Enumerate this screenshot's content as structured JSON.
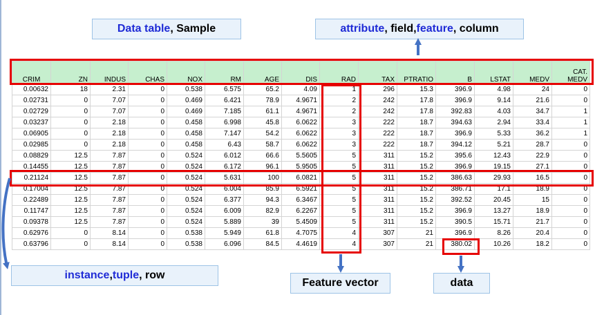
{
  "labels": {
    "sample": [
      "Data table",
      ", Sample"
    ],
    "attribute": [
      "attribute",
      ", field, ",
      "feature",
      ", column"
    ],
    "instance": [
      "instance",
      ", ",
      "tuple",
      ", row"
    ],
    "feature_vector": "Feature vector",
    "data": "data"
  },
  "colors": {
    "highlight_red": "#e60000",
    "header_green": "#c6efce",
    "label_blue_text": "#1f2bd6",
    "arrow_blue": "#4472c4"
  },
  "table": {
    "headers": [
      "CRIM",
      "ZN",
      "INDUS",
      "CHAS",
      "NOX",
      "RM",
      "AGE",
      "DIS",
      "RAD",
      "TAX",
      "PTRATIO",
      "B",
      "LSTAT",
      "MEDV",
      "CAT.\nMEDV"
    ],
    "rows": [
      [
        "0.00632",
        "18",
        "2.31",
        "0",
        "0.538",
        "6.575",
        "65.2",
        "4.09",
        "1",
        "296",
        "15.3",
        "396.9",
        "4.98",
        "24",
        "0"
      ],
      [
        "0.02731",
        "0",
        "7.07",
        "0",
        "0.469",
        "6.421",
        "78.9",
        "4.9671",
        "2",
        "242",
        "17.8",
        "396.9",
        "9.14",
        "21.6",
        "0"
      ],
      [
        "0.02729",
        "0",
        "7.07",
        "0",
        "0.469",
        "7.185",
        "61.1",
        "4.9671",
        "2",
        "242",
        "17.8",
        "392.83",
        "4.03",
        "34.7",
        "1"
      ],
      [
        "0.03237",
        "0",
        "2.18",
        "0",
        "0.458",
        "6.998",
        "45.8",
        "6.0622",
        "3",
        "222",
        "18.7",
        "394.63",
        "2.94",
        "33.4",
        "1"
      ],
      [
        "0.06905",
        "0",
        "2.18",
        "0",
        "0.458",
        "7.147",
        "54.2",
        "6.0622",
        "3",
        "222",
        "18.7",
        "396.9",
        "5.33",
        "36.2",
        "1"
      ],
      [
        "0.02985",
        "0",
        "2.18",
        "0",
        "0.458",
        "6.43",
        "58.7",
        "6.0622",
        "3",
        "222",
        "18.7",
        "394.12",
        "5.21",
        "28.7",
        "0"
      ],
      [
        "0.08829",
        "12.5",
        "7.87",
        "0",
        "0.524",
        "6.012",
        "66.6",
        "5.5605",
        "5",
        "311",
        "15.2",
        "395.6",
        "12.43",
        "22.9",
        "0"
      ],
      [
        "0.14455",
        "12.5",
        "7.87",
        "0",
        "0.524",
        "6.172",
        "96.1",
        "5.9505",
        "5",
        "311",
        "15.2",
        "396.9",
        "19.15",
        "27.1",
        "0"
      ],
      [
        "0.21124",
        "12.5",
        "7.87",
        "0",
        "0.524",
        "5.631",
        "100",
        "6.0821",
        "5",
        "311",
        "15.2",
        "386.63",
        "29.93",
        "16.5",
        "0"
      ],
      [
        "0.17004",
        "12.5",
        "7.87",
        "0",
        "0.524",
        "6.004",
        "85.9",
        "6.5921",
        "5",
        "311",
        "15.2",
        "386.71",
        "17.1",
        "18.9",
        "0"
      ],
      [
        "0.22489",
        "12.5",
        "7.87",
        "0",
        "0.524",
        "6.377",
        "94.3",
        "6.3467",
        "5",
        "311",
        "15.2",
        "392.52",
        "20.45",
        "15",
        "0"
      ],
      [
        "0.11747",
        "12.5",
        "7.87",
        "0",
        "0.524",
        "6.009",
        "82.9",
        "6.2267",
        "5",
        "311",
        "15.2",
        "396.9",
        "13.27",
        "18.9",
        "0"
      ],
      [
        "0.09378",
        "12.5",
        "7.87",
        "0",
        "0.524",
        "5.889",
        "39",
        "5.4509",
        "5",
        "311",
        "15.2",
        "390.5",
        "15.71",
        "21.7",
        "0"
      ],
      [
        "0.62976",
        "0",
        "8.14",
        "0",
        "0.538",
        "5.949",
        "61.8",
        "4.7075",
        "4",
        "307",
        "21",
        "396.9",
        "8.26",
        "20.4",
        "0"
      ],
      [
        "0.63796",
        "0",
        "8.14",
        "0",
        "0.538",
        "6.096",
        "84.5",
        "4.4619",
        "4",
        "307",
        "21",
        "380.02",
        "10.26",
        "18.2",
        "0"
      ]
    ]
  }
}
